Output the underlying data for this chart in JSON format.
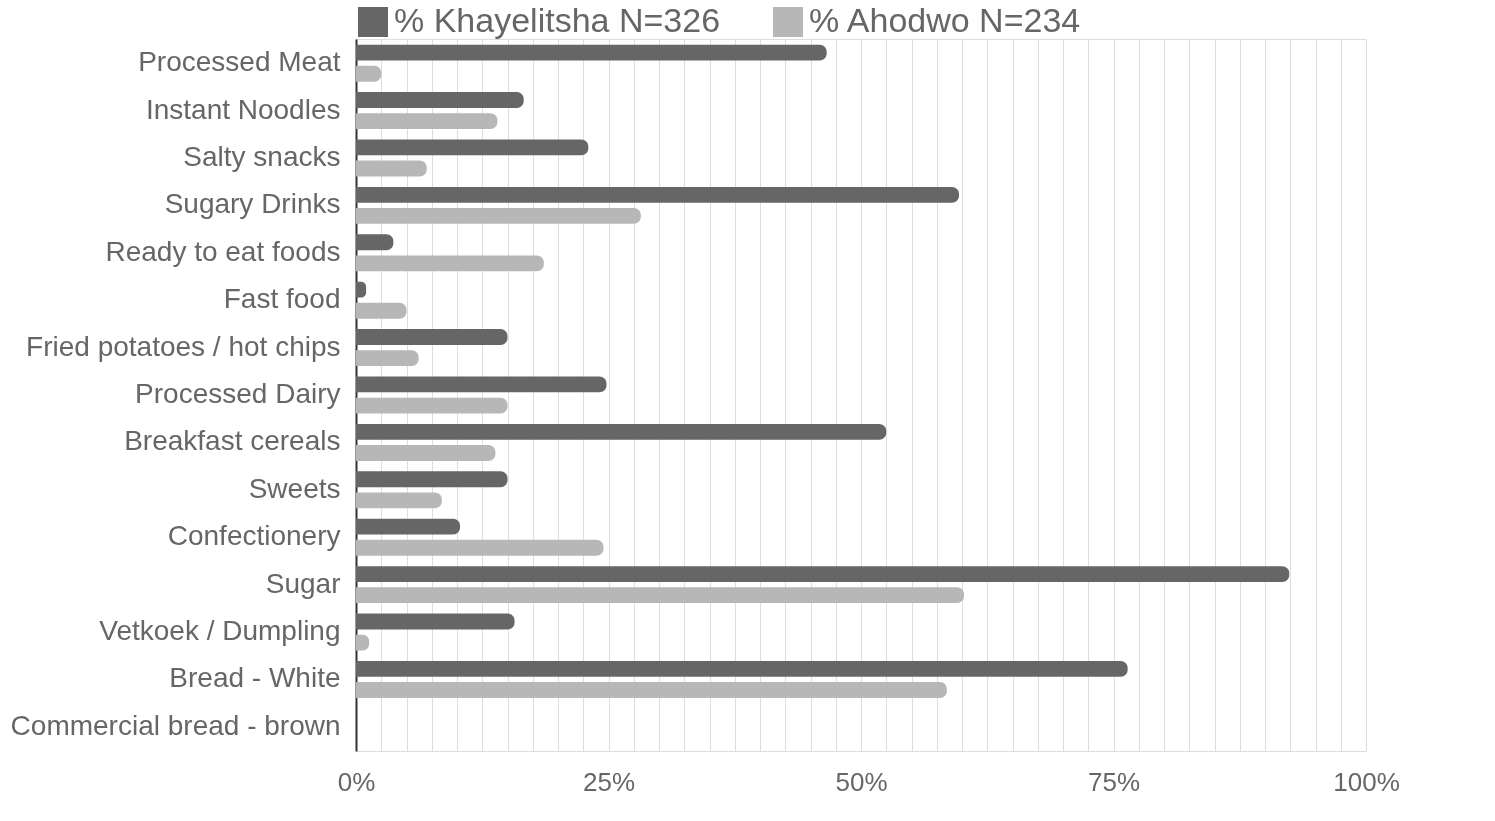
{
  "chart_data": {
    "type": "bar",
    "orientation": "horizontal",
    "categories": [
      "Processed Meat",
      "Instant Noodles",
      "Salty snacks",
      "Sugary Drinks",
      "Ready to eat foods",
      "Fast food",
      "Fried potatoes / hot chips",
      "Processed Dairy",
      "Breakfast cereals",
      "Sweets",
      "Confectionery",
      "Sugar",
      "Vetkoek / Dumpling",
      "Bread - White",
      "Commercial bread - brown"
    ],
    "series": [
      {
        "name": "% Khayelitsha N=326",
        "color": "#666666",
        "values": [
          46.6,
          16.6,
          23.0,
          59.7,
          3.7,
          1.0,
          15.0,
          24.8,
          52.5,
          15.0,
          10.3,
          92.4,
          15.7,
          76.4,
          0
        ]
      },
      {
        "name": "% Ahodwo N=234",
        "color": "#b7b7b7",
        "values": [
          2.5,
          14.0,
          7.0,
          28.2,
          18.6,
          5.0,
          6.2,
          15.0,
          13.8,
          8.5,
          24.5,
          60.2,
          1.3,
          58.5,
          0
        ]
      }
    ],
    "xlim": [
      0,
      100
    ],
    "xticks": [
      {
        "value": 0,
        "label": "0%"
      },
      {
        "value": 2.5,
        "label": null
      },
      {
        "value": 5,
        "label": null
      },
      {
        "value": 7.5,
        "label": null
      },
      {
        "value": 10,
        "label": null
      },
      {
        "value": 12.5,
        "label": null
      },
      {
        "value": 15,
        "label": null
      },
      {
        "value": 17.5,
        "label": null
      },
      {
        "value": 20,
        "label": null
      },
      {
        "value": 22.5,
        "label": null
      },
      {
        "value": 25,
        "label": "25%"
      },
      {
        "value": 27.5,
        "label": null
      },
      {
        "value": 30,
        "label": null
      },
      {
        "value": 32.5,
        "label": null
      },
      {
        "value": 35,
        "label": null
      },
      {
        "value": 37.5,
        "label": null
      },
      {
        "value": 40,
        "label": null
      },
      {
        "value": 42.5,
        "label": null
      },
      {
        "value": 45,
        "label": null
      },
      {
        "value": 47.5,
        "label": null
      },
      {
        "value": 50,
        "label": "50%"
      },
      {
        "value": 52.5,
        "label": null
      },
      {
        "value": 55,
        "label": null
      },
      {
        "value": 57.5,
        "label": null
      },
      {
        "value": 60,
        "label": null
      },
      {
        "value": 62.5,
        "label": null
      },
      {
        "value": 65,
        "label": null
      },
      {
        "value": 67.5,
        "label": null
      },
      {
        "value": 70,
        "label": null
      },
      {
        "value": 72.5,
        "label": null
      },
      {
        "value": 75,
        "label": "75%"
      },
      {
        "value": 77.5,
        "label": null
      },
      {
        "value": 80,
        "label": null
      },
      {
        "value": 82.5,
        "label": null
      },
      {
        "value": 85,
        "label": null
      },
      {
        "value": 87.5,
        "label": null
      },
      {
        "value": 90,
        "label": null
      },
      {
        "value": 92.5,
        "label": null
      },
      {
        "value": 95,
        "label": null
      },
      {
        "value": 97.5,
        "label": null
      },
      {
        "value": 100,
        "label": "100%"
      }
    ],
    "grid": "x",
    "legend": "top"
  }
}
